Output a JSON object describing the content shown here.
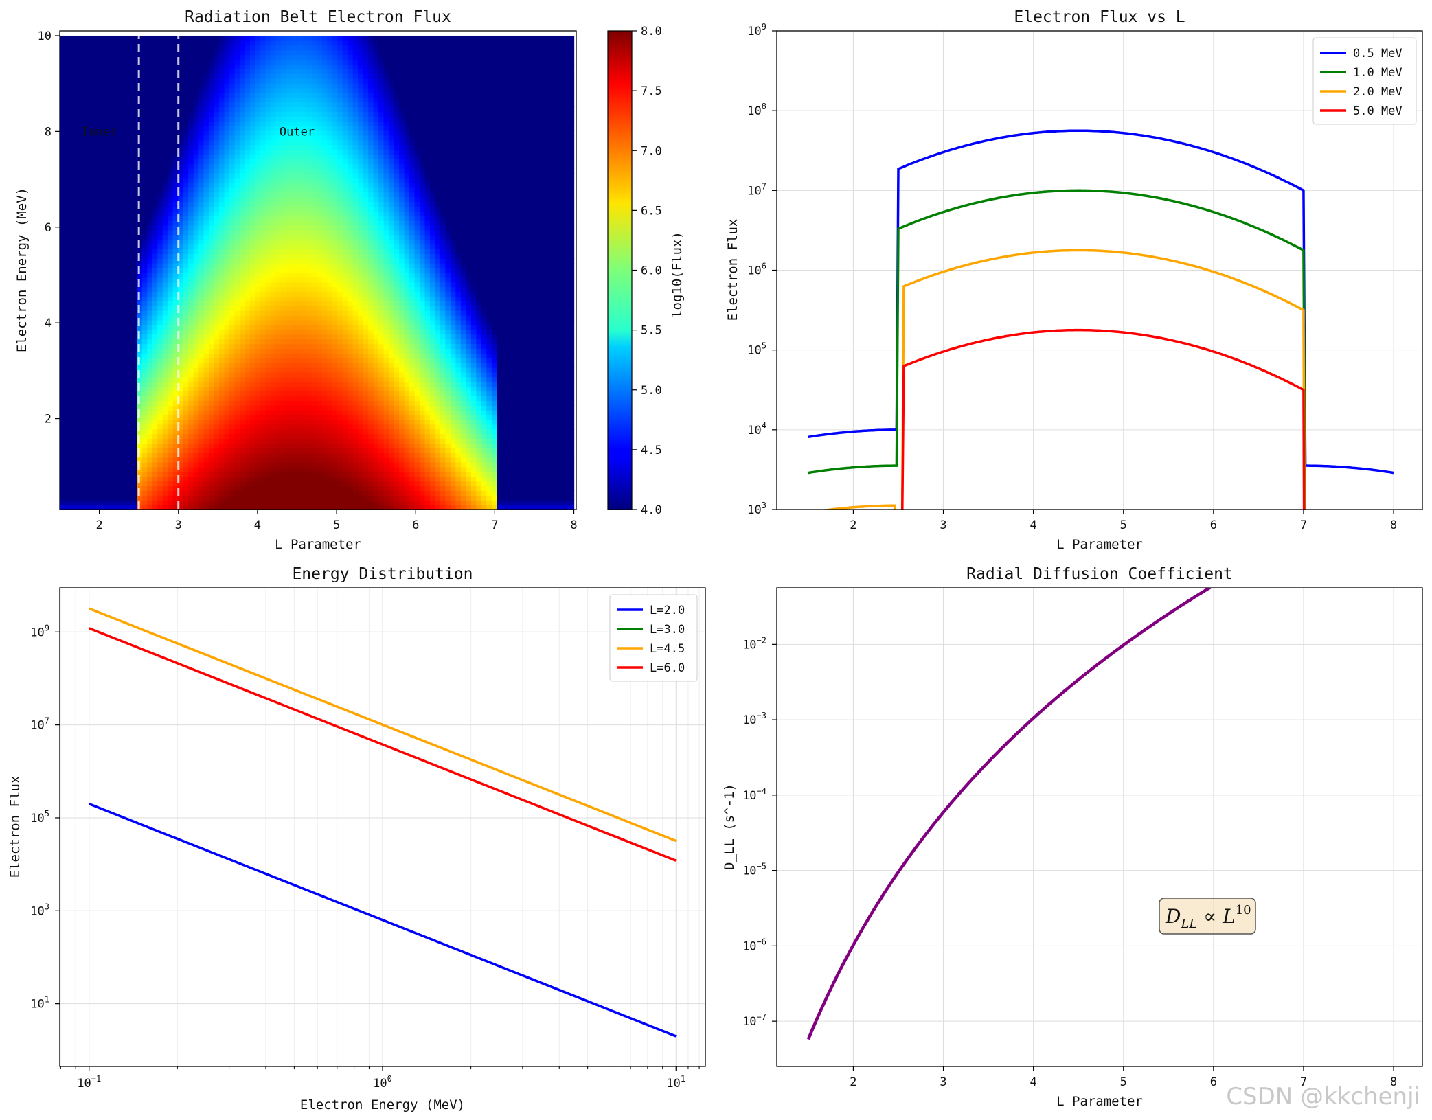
{
  "watermark": "CSDN @kkchenji",
  "chart_data": [
    {
      "type": "heatmap",
      "title": "Radiation Belt Electron Flux",
      "xlabel": "L Parameter",
      "ylabel": "Electron Energy (MeV)",
      "xlim": [
        1.5,
        8.03
      ],
      "ylim": [
        0.1,
        10.1
      ],
      "xticks": [
        "2",
        "3",
        "4",
        "5",
        "6",
        "7",
        "8"
      ],
      "yticks": [
        "2",
        "4",
        "6",
        "8",
        "10"
      ],
      "colorbar": {
        "label": "log10(Flux)",
        "range": [
          4.0,
          8.0
        ],
        "ticks": [
          "4.0",
          "4.5",
          "5.0",
          "5.5",
          "6.0",
          "6.5",
          "7.0",
          "7.5",
          "8.0"
        ]
      },
      "boundaries_L": [
        2.5,
        3.0
      ],
      "outer_belt_L": [
        2.5,
        7.0
      ],
      "peak_L": 4.5,
      "annotations": [
        {
          "text": "Inner",
          "L": 2.0,
          "E": 8.0
        },
        {
          "text": "Outer",
          "L": 4.5,
          "E": 8.0
        }
      ]
    },
    {
      "type": "line",
      "title": "Electron Flux vs L",
      "xlabel": "L Parameter",
      "ylabel": "Electron Flux",
      "xlim": [
        1.15,
        8.32
      ],
      "ylim_log10": [
        3,
        9
      ],
      "xticks": [
        "2",
        "3",
        "4",
        "5",
        "6",
        "7",
        "8"
      ],
      "yticks": [
        {
          "b": "10",
          "e": "3"
        },
        {
          "b": "10",
          "e": "4"
        },
        {
          "b": "10",
          "e": "5"
        },
        {
          "b": "10",
          "e": "6"
        },
        {
          "b": "10",
          "e": "7"
        },
        {
          "b": "10",
          "e": "8"
        },
        {
          "b": "10",
          "e": "9"
        }
      ],
      "series": [
        {
          "name": "0.5 MeV",
          "color": "#0000ff",
          "peak_log10": 7.75,
          "edge_log10": 7.0
        },
        {
          "name": "1.0 MeV",
          "color": "#008000",
          "peak_log10": 7.0,
          "edge_log10": 6.25
        },
        {
          "name": "2.0 MeV",
          "color": "#ffa500",
          "peak_log10": 6.25,
          "edge_log10": 5.5
        },
        {
          "name": "5.0 MeV",
          "color": "#ff0000",
          "peak_log10": 5.25,
          "edge_log10": 4.5
        }
      ]
    },
    {
      "type": "line",
      "title": "Energy Distribution",
      "xlabel": "Electron Energy (MeV)",
      "ylabel": "Electron Flux",
      "xscale": "log",
      "xlim_log10": [
        -1.1,
        1.1
      ],
      "ylim_log10": [
        -0.35,
        9.95
      ],
      "xticks": [
        {
          "b": "10",
          "e": "−1"
        },
        {
          "b": "10",
          "e": "0"
        },
        {
          "b": "10",
          "e": "1"
        }
      ],
      "yticks": [
        {
          "b": "10",
          "e": "1"
        },
        {
          "b": "10",
          "e": "3"
        },
        {
          "b": "10",
          "e": "5"
        },
        {
          "b": "10",
          "e": "7"
        },
        {
          "b": "10",
          "e": "9"
        }
      ],
      "series": [
        {
          "name": "L=2.0",
          "color": "#0000ff",
          "x": [
            0.1,
            10
          ],
          "y": [
            200000,
            2
          ]
        },
        {
          "name": "L=3.0",
          "color": "#008000",
          "x": [
            0.1,
            10
          ],
          "y": [
            1000000000,
            10000
          ]
        },
        {
          "name": "L=4.5",
          "color": "#ffa500",
          "x": [
            0.1,
            10
          ],
          "y": [
            3200000000,
            32000
          ]
        },
        {
          "name": "L=6.0",
          "color": "#ff0000",
          "x": [
            0.1,
            10
          ],
          "y": [
            1200000000,
            12000
          ]
        }
      ]
    },
    {
      "type": "line",
      "title": "Radial Diffusion Coefficient",
      "xlabel": "L Parameter",
      "ylabel": "D_LL (s^-1)",
      "xlim": [
        1.15,
        8.32
      ],
      "ylim_log10": [
        -7.6,
        -1.25
      ],
      "xticks": [
        "2",
        "3",
        "4",
        "5",
        "6",
        "7",
        "8"
      ],
      "yticks": [
        {
          "b": "10",
          "e": "−7"
        },
        {
          "b": "10",
          "e": "−6"
        },
        {
          "b": "10",
          "e": "−5"
        },
        {
          "b": "10",
          "e": "−4"
        },
        {
          "b": "10",
          "e": "−3"
        },
        {
          "b": "10",
          "e": "−2"
        }
      ],
      "series": [
        {
          "name": "D_LL",
          "color": "#800080",
          "formula": "1e-9 * L^10",
          "L_range": [
            1.5,
            8.0
          ]
        }
      ],
      "annotation": {
        "base": "D",
        "sub": "LL",
        "op": " ∝ ",
        "var": "L",
        "sup": "10"
      }
    }
  ]
}
